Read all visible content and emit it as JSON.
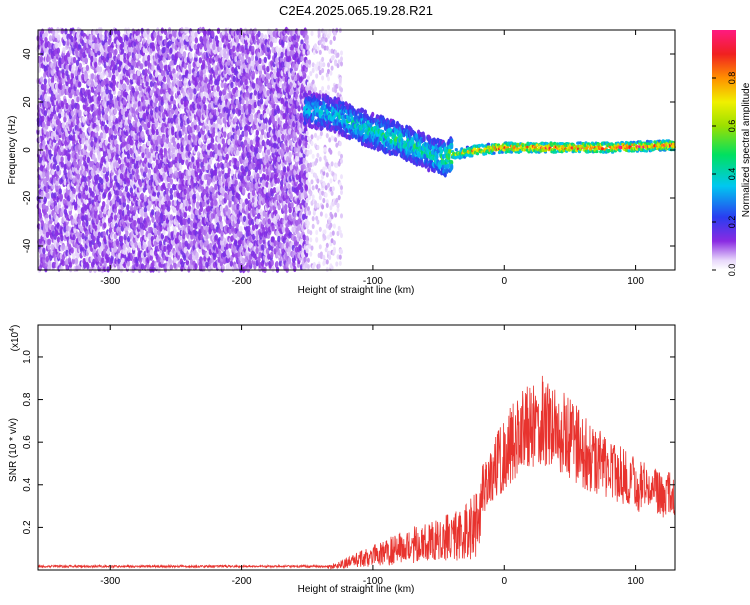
{
  "page_title": "C2E4.2025.065.19.28.R21",
  "colors": {
    "snr_line": "#e8332e",
    "axis": "#000000",
    "background": "#ffffff"
  },
  "chart_data": [
    {
      "type": "heatmap",
      "xlabel": "Height of straight line (km)",
      "ylabel": "Frequency (Hz)",
      "xlim": [
        -355,
        130
      ],
      "ylim": [
        -50,
        50
      ],
      "x_ticks": [
        -300,
        -200,
        -100,
        0,
        100
      ],
      "y_ticks": [
        -40,
        -20,
        0,
        20,
        40
      ],
      "colorbar": {
        "label": "Normalized spectral amplitude",
        "range": [
          0,
          1
        ],
        "ticks": [
          "0.0",
          "0.2",
          "0.4",
          "0.6",
          "0.8"
        ],
        "tick_values": [
          0.0,
          0.2,
          0.4,
          0.6,
          0.8
        ]
      },
      "ridge": {
        "x": [
          -150,
          -130,
          -110,
          -90,
          -70,
          -55,
          -45,
          -40,
          -20,
          0,
          40,
          80,
          130
        ],
        "freq": [
          17,
          15,
          10,
          6,
          2,
          -2,
          -4,
          -2,
          0,
          1,
          1,
          1,
          2
        ],
        "amplitude": [
          0.35,
          0.38,
          0.42,
          0.45,
          0.45,
          0.42,
          0.5,
          0.6,
          0.8,
          0.9,
          0.9,
          0.9,
          0.9
        ]
      }
    },
    {
      "type": "line",
      "xlabel": "Height of straight line (km)",
      "ylabel": "SNR (10 * v/v)",
      "y_multiplier": "(x10",
      "y_multiplier_exp": "4",
      "y_multiplier_close": ")",
      "xlim": [
        -355,
        130
      ],
      "ylim": [
        0,
        1.15
      ],
      "x_ticks": [
        -300,
        -200,
        -100,
        0,
        100
      ],
      "y_ticks": [
        0.2,
        0.4,
        0.6,
        0.8,
        1.0
      ],
      "y_tick_labels": [
        "0.2",
        "0.4",
        "0.6",
        "0.8",
        "1.0"
      ],
      "series": [
        {
          "envelope_x": [
            -355,
            -135,
            -125,
            -110,
            -95,
            -80,
            -65,
            -55,
            -45,
            -35,
            -28,
            -22,
            -20,
            -18,
            -10,
            0,
            10,
            20,
            30,
            40,
            50,
            60,
            70,
            80,
            90,
            100,
            110,
            120,
            130
          ],
          "envelope_y": [
            0.02,
            0.02,
            0.04,
            0.08,
            0.12,
            0.16,
            0.2,
            0.22,
            0.24,
            0.26,
            0.3,
            0.34,
            0.34,
            0.45,
            0.55,
            0.68,
            0.78,
            0.85,
            0.88,
            0.85,
            0.78,
            0.7,
            0.64,
            0.58,
            0.55,
            0.5,
            0.47,
            0.45,
            0.43
          ]
        }
      ]
    }
  ]
}
